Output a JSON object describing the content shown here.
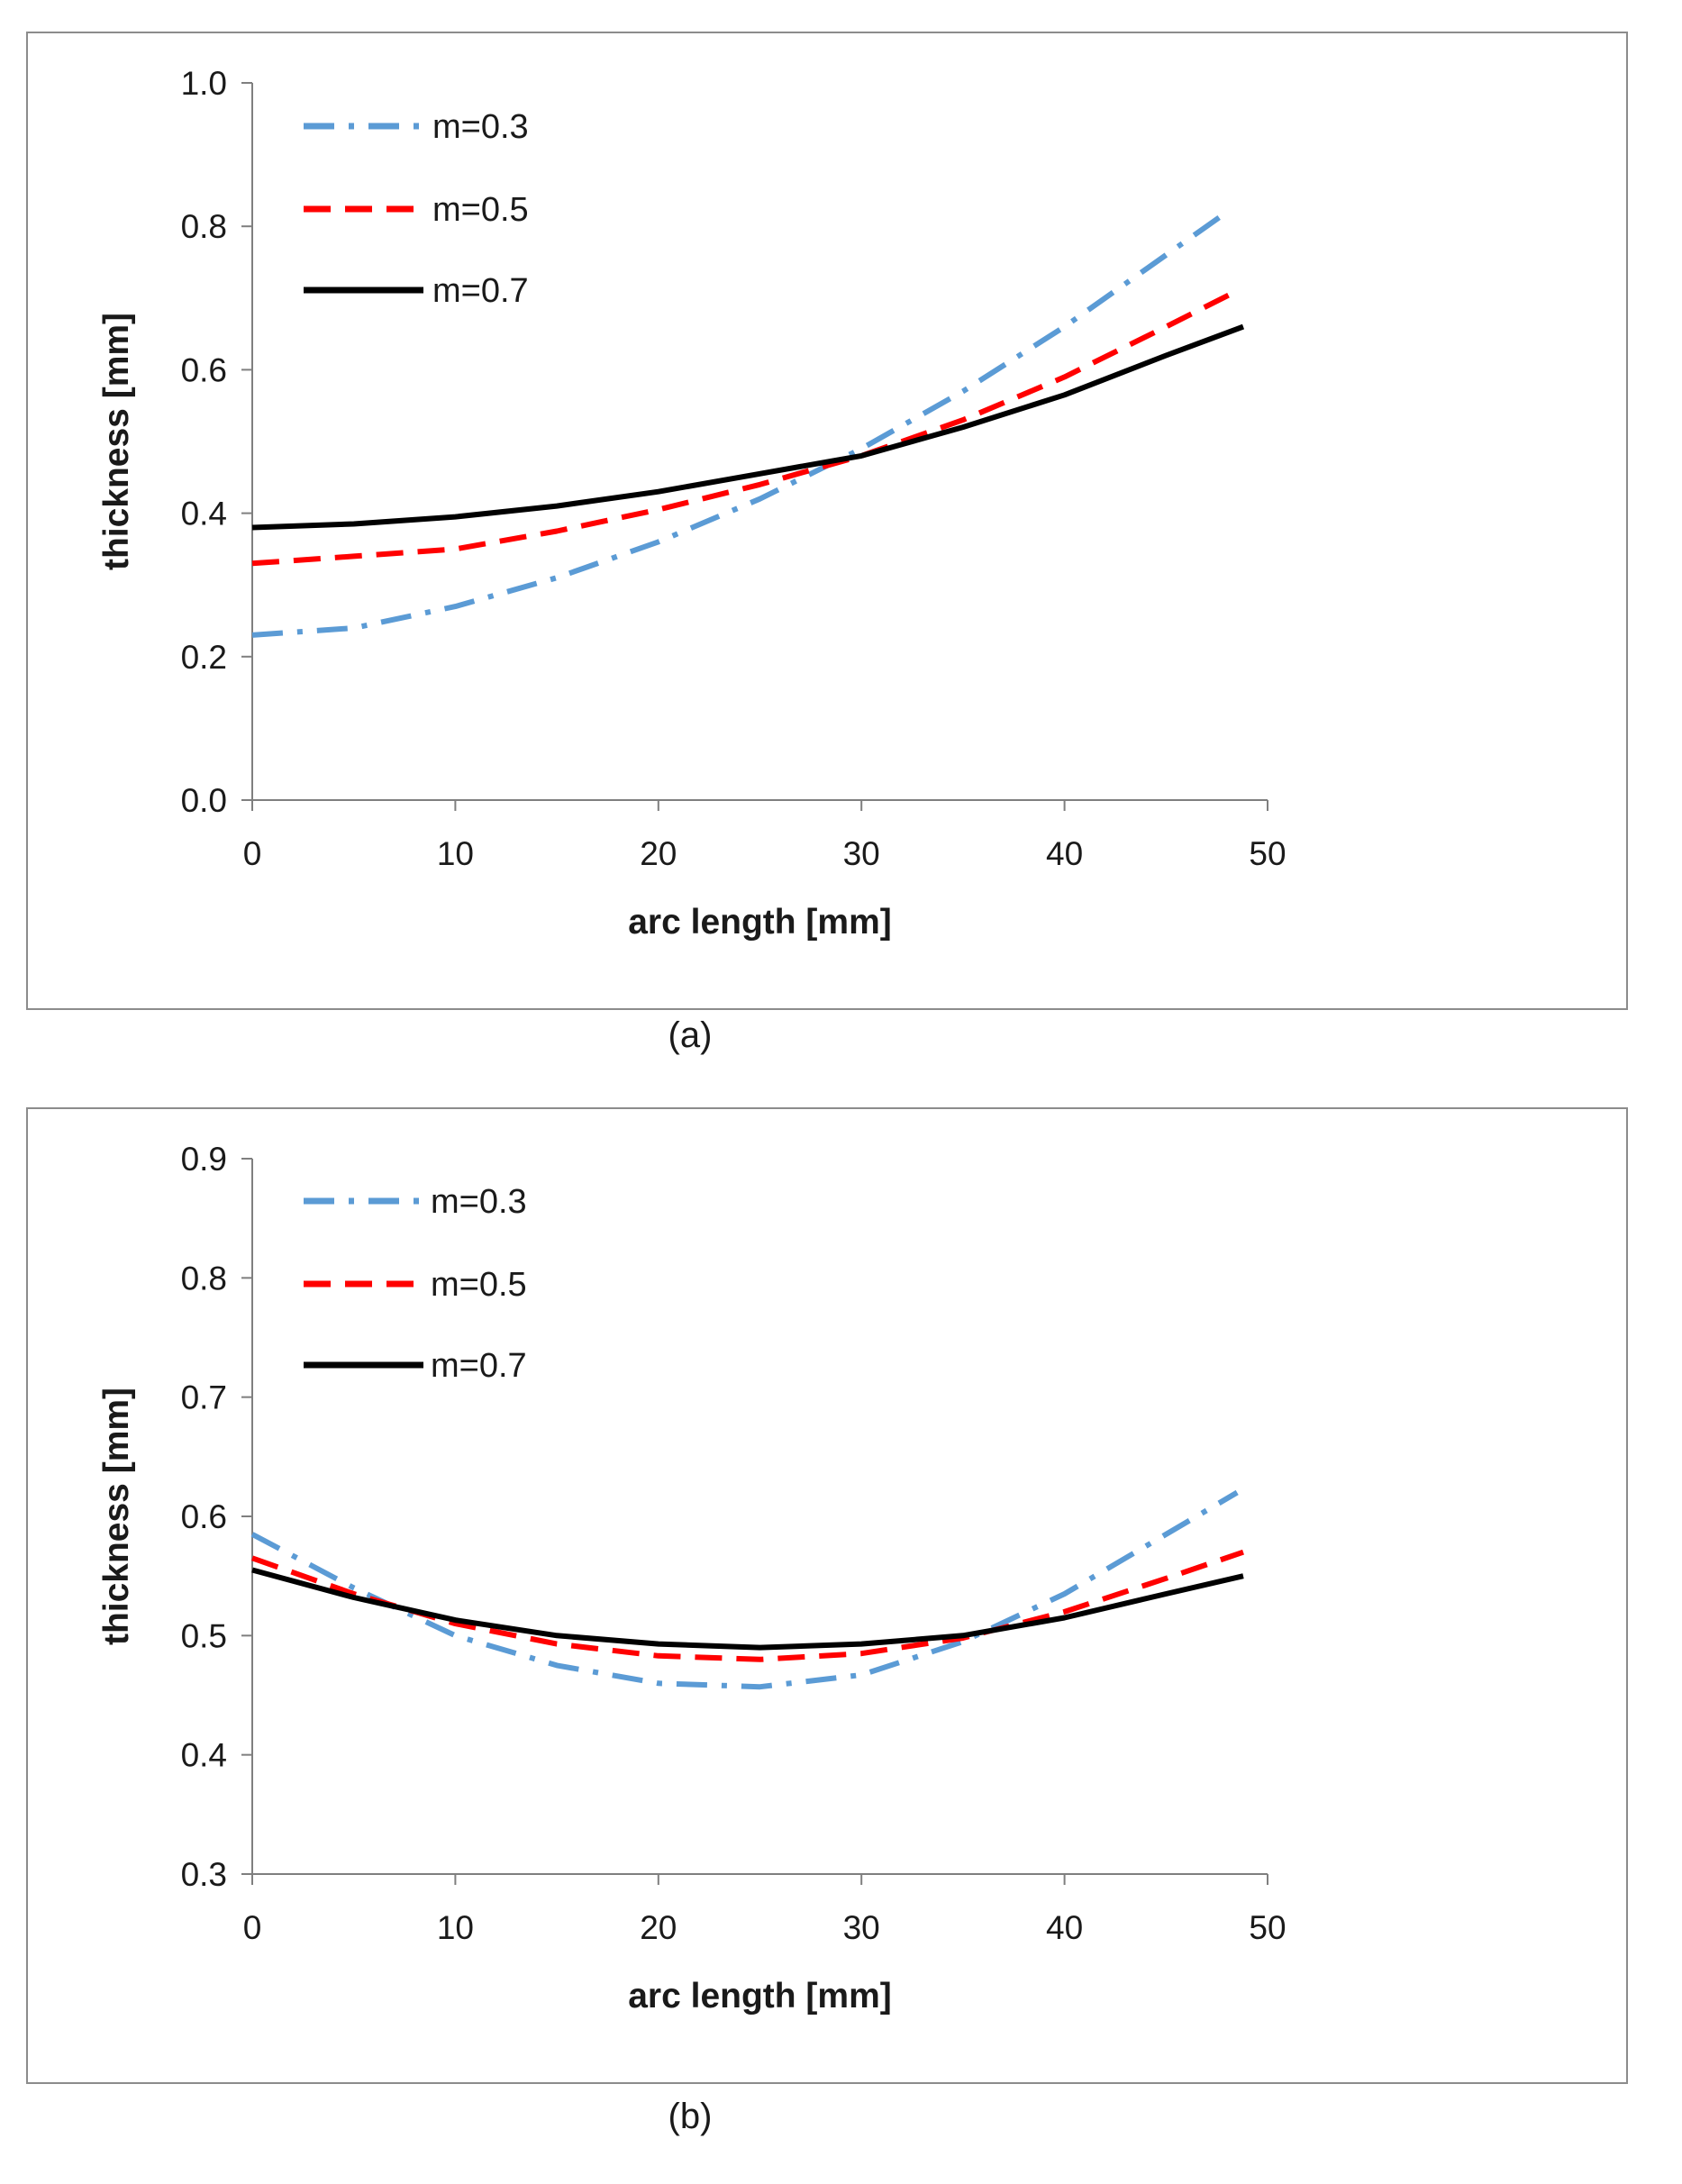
{
  "chart_data": [
    {
      "type": "line",
      "panel_label": "(a)",
      "xlabel": "arc length [mm]",
      "ylabel": "thickness [mm]",
      "xlim": [
        0,
        50
      ],
      "ylim": [
        0,
        1
      ],
      "xticks": [
        "0",
        "10",
        "20",
        "30",
        "40",
        "50"
      ],
      "yticks": [
        "0.0",
        "0.2",
        "0.4",
        "0.6",
        "0.8",
        "1.0"
      ],
      "legend_position": "top-left",
      "grid": false,
      "series": [
        {
          "name": "m=0.3",
          "color": "#5b9bd5",
          "style": "dash-dot",
          "x": [
            0,
            5,
            10,
            15,
            20,
            25,
            30,
            35,
            40,
            45,
            48
          ],
          "y": [
            0.23,
            0.24,
            0.27,
            0.31,
            0.36,
            0.42,
            0.49,
            0.57,
            0.66,
            0.76,
            0.82
          ]
        },
        {
          "name": "m=0.5",
          "color": "#ff0000",
          "style": "dashed",
          "x": [
            0,
            5,
            10,
            15,
            20,
            25,
            30,
            35,
            40,
            45,
            48.5
          ],
          "y": [
            0.33,
            0.34,
            0.35,
            0.375,
            0.405,
            0.44,
            0.48,
            0.53,
            0.59,
            0.66,
            0.71
          ]
        },
        {
          "name": "m=0.7",
          "color": "#000000",
          "style": "solid",
          "x": [
            0,
            5,
            10,
            15,
            20,
            25,
            30,
            35,
            40,
            45,
            48.8
          ],
          "y": [
            0.38,
            0.385,
            0.395,
            0.41,
            0.43,
            0.455,
            0.48,
            0.52,
            0.565,
            0.62,
            0.66
          ]
        }
      ]
    },
    {
      "type": "line",
      "panel_label": "(b)",
      "xlabel": "arc length [mm]",
      "ylabel": "thickness [mm]",
      "xlim": [
        0,
        50
      ],
      "ylim": [
        0.3,
        0.9
      ],
      "xticks": [
        "0",
        "10",
        "20",
        "30",
        "40",
        "50"
      ],
      "yticks": [
        "0.3",
        "0.4",
        "0.5",
        "0.6",
        "0.7",
        "0.8",
        "0.9"
      ],
      "legend_position": "top-left",
      "grid": false,
      "series": [
        {
          "name": "m=0.3",
          "color": "#5b9bd5",
          "style": "dash-dot",
          "x": [
            0,
            5,
            10,
            15,
            20,
            25,
            30,
            35,
            40,
            45,
            48.5
          ],
          "y": [
            0.585,
            0.54,
            0.5,
            0.475,
            0.46,
            0.457,
            0.467,
            0.495,
            0.535,
            0.585,
            0.62
          ]
        },
        {
          "name": "m=0.5",
          "color": "#ff0000",
          "style": "dashed",
          "x": [
            0,
            5,
            10,
            15,
            20,
            25,
            30,
            35,
            40,
            45,
            48.8
          ],
          "y": [
            0.565,
            0.535,
            0.51,
            0.493,
            0.483,
            0.48,
            0.485,
            0.498,
            0.52,
            0.548,
            0.57
          ]
        },
        {
          "name": "m=0.7",
          "color": "#000000",
          "style": "solid",
          "x": [
            0,
            5,
            10,
            15,
            20,
            25,
            30,
            35,
            40,
            45,
            48.8
          ],
          "y": [
            0.555,
            0.532,
            0.513,
            0.5,
            0.493,
            0.49,
            0.493,
            0.5,
            0.515,
            0.535,
            0.55
          ]
        }
      ]
    }
  ]
}
